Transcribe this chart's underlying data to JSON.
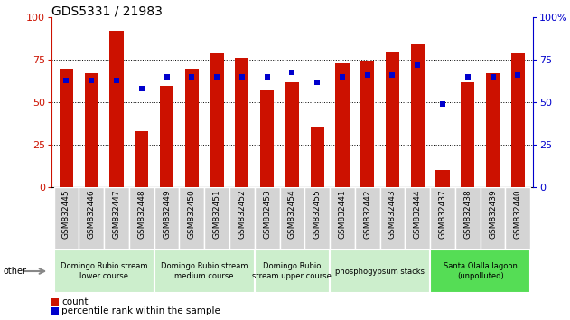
{
  "title": "GDS5331 / 21983",
  "samples": [
    "GSM832445",
    "GSM832446",
    "GSM832447",
    "GSM832448",
    "GSM832449",
    "GSM832450",
    "GSM832451",
    "GSM832452",
    "GSM832453",
    "GSM832454",
    "GSM832455",
    "GSM832441",
    "GSM832442",
    "GSM832443",
    "GSM832444",
    "GSM832437",
    "GSM832438",
    "GSM832439",
    "GSM832440"
  ],
  "count_values": [
    70,
    67,
    92,
    33,
    60,
    70,
    79,
    76,
    57,
    62,
    36,
    73,
    74,
    80,
    84,
    10,
    62,
    67,
    79
  ],
  "percentile_values": [
    63,
    63,
    63,
    58,
    65,
    65,
    65,
    65,
    65,
    68,
    62,
    65,
    66,
    66,
    72,
    49,
    65,
    65,
    66
  ],
  "bar_color": "#cc1100",
  "dot_color": "#0000cc",
  "groups": [
    {
      "label": "Domingo Rubio stream\nlower course",
      "start": 0,
      "end": 4,
      "color": "#cceecc"
    },
    {
      "label": "Domingo Rubio stream\nmedium course",
      "start": 4,
      "end": 8,
      "color": "#cceecc"
    },
    {
      "label": "Domingo Rubio\nstream upper course",
      "start": 8,
      "end": 11,
      "color": "#cceecc"
    },
    {
      "label": "phosphogypsum stacks",
      "start": 11,
      "end": 15,
      "color": "#cceecc"
    },
    {
      "label": "Santa Olalla lagoon\n(unpolluted)",
      "start": 15,
      "end": 19,
      "color": "#55dd55"
    }
  ],
  "left_axis_color": "#cc1100",
  "right_axis_color": "#0000cc",
  "ylim": [
    0,
    100
  ],
  "grid_values": [
    25,
    50,
    75
  ],
  "legend_count_label": "count",
  "legend_pct_label": "percentile rank within the sample",
  "other_label": "other",
  "bar_width": 0.55,
  "title_fontsize": 10,
  "tick_fontsize": 6.5,
  "group_fontsize": 6.0,
  "axis_tick_fontsize": 8,
  "legend_fontsize": 7.5
}
